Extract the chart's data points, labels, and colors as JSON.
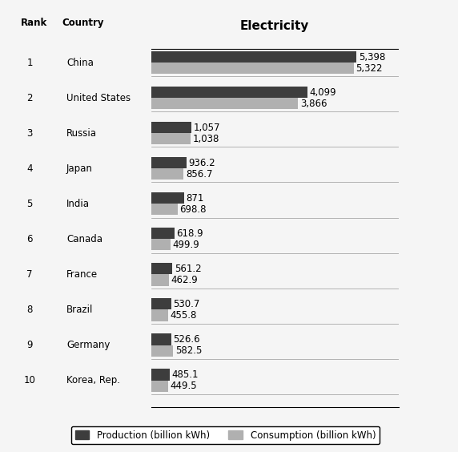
{
  "title": "Electricity",
  "col_rank": "Rank",
  "col_country": "Country",
  "countries": [
    "China",
    "United States",
    "Russia",
    "Japan",
    "India",
    "Canada",
    "France",
    "Brazil",
    "Germany",
    "Korea, Rep."
  ],
  "ranks": [
    "1",
    "2",
    "3",
    "4",
    "5",
    "6",
    "7",
    "8",
    "9",
    "10"
  ],
  "production": [
    5398,
    4099,
    1057,
    936.2,
    871,
    618.9,
    561.2,
    530.7,
    526.6,
    485.1
  ],
  "consumption": [
    5322,
    3866,
    1038,
    856.7,
    698.8,
    499.9,
    462.9,
    455.8,
    582.5,
    449.5
  ],
  "production_color": "#3d3d3d",
  "consumption_color": "#b0b0b0",
  "background_color": "#f5f5f5",
  "bar_height": 0.32,
  "label_fontsize": 8.5,
  "title_fontsize": 11,
  "legend_fontsize": 8.5,
  "xlim": [
    0,
    6500
  ]
}
